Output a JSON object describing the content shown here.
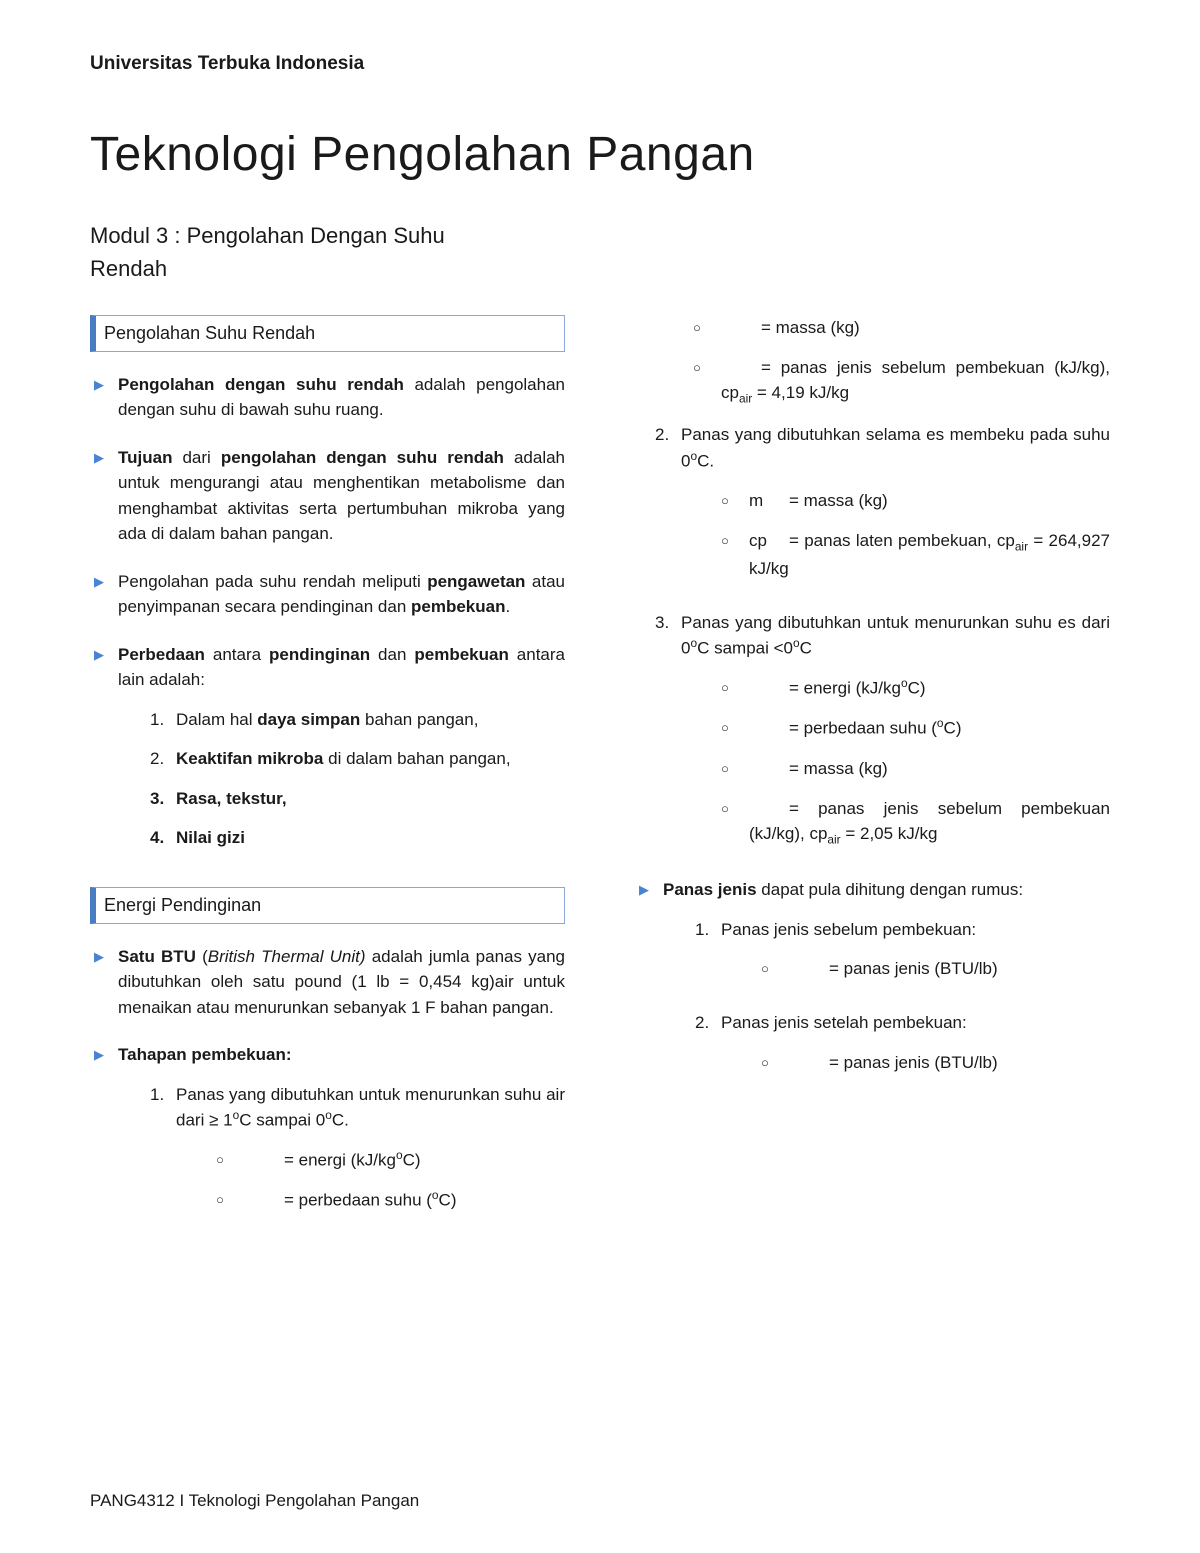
{
  "header": {
    "university": "Universitas Terbuka Indonesia"
  },
  "title": "Teknologi Pengolahan Pangan",
  "subtitle": "Modul 3 : Pengolahan Dengan Suhu Rendah",
  "footer": "PANG4312 I Teknologi Pengolahan Pangan",
  "colors": {
    "arrow": "#4a82d4",
    "section_border": "#8aa9d6",
    "section_left_bar": "#4a7cc4",
    "text": "#1a1a1a",
    "bg": "#ffffff"
  },
  "typography": {
    "body_pt": 17,
    "title_pt": 48,
    "subtitle_pt": 22,
    "header_pt": 19
  },
  "sections": [
    {
      "heading": "Pengolahan Suhu Rendah",
      "bullets": [
        {
          "parts": [
            {
              "t": "Pengolahan dengan suhu rendah",
              "b": true
            },
            {
              "t": " adalah pengolahan dengan suhu di bawah suhu ruang."
            }
          ]
        },
        {
          "parts": [
            {
              "t": "Tujuan",
              "b": true
            },
            {
              "t": " dari "
            },
            {
              "t": "pengolahan dengan suhu rendah",
              "b": true
            },
            {
              "t": " adalah untuk mengurangi atau menghentikan metabolisme dan menghambat aktivitas serta pertumbuhan mikroba yang ada di dalam bahan pangan."
            }
          ]
        },
        {
          "parts": [
            {
              "t": "Pengolahan pada suhu rendah meliputi "
            },
            {
              "t": "pengawetan",
              "b": true
            },
            {
              "t": " atau penyimpanan secara pendinginan dan "
            },
            {
              "t": "pembekuan",
              "b": true
            },
            {
              "t": "."
            }
          ]
        },
        {
          "parts": [
            {
              "t": "Perbedaan",
              "b": true
            },
            {
              "t": " antara "
            },
            {
              "t": "pendinginan",
              "b": true
            },
            {
              "t": " dan "
            },
            {
              "t": "pembekuan",
              "b": true
            },
            {
              "t": " antara lain adalah:"
            }
          ],
          "numbered": [
            {
              "n": "1.",
              "parts": [
                {
                  "t": "Dalam hal "
                },
                {
                  "t": "daya simpan",
                  "b": true
                },
                {
                  "t": " bahan pangan,"
                }
              ]
            },
            {
              "n": "2.",
              "parts": [
                {
                  "t": "Keaktifan mikroba",
                  "b": true
                },
                {
                  "t": " di dalam bahan pangan,"
                }
              ]
            },
            {
              "n": "3.",
              "parts": [
                {
                  "t": "Rasa, tekstur,",
                  "b": true
                }
              ],
              "num_bold": true
            },
            {
              "n": "4.",
              "parts": [
                {
                  "t": "Nilai gizi",
                  "b": true
                }
              ],
              "num_bold": true
            }
          ]
        }
      ]
    },
    {
      "heading": "Energi Pendinginan",
      "bullets": [
        {
          "parts": [
            {
              "t": "Satu BTU",
              "b": true
            },
            {
              "t": " ("
            },
            {
              "t": "British Thermal Unit)",
              "i": true
            },
            {
              "t": " adalah jumla panas yang dibutuhkan oleh satu pound (1 lb = 0,454 kg)air untuk menaikan atau menurunkan sebanyak 1 F bahan pangan."
            }
          ]
        },
        {
          "parts": [
            {
              "t": "Tahapan pembekuan:",
              "b": true
            }
          ],
          "numbered": [
            {
              "n": "1.",
              "parts": [
                {
                  "t": "Panas yang dibutuhkan untuk menurunkan suhu air dari ≥ 1"
                },
                {
                  "t": "o",
                  "sup": true
                },
                {
                  "t": "C sampai 0"
                },
                {
                  "t": "o",
                  "sup": true
                },
                {
                  "t": "C."
                }
              ],
              "circles": [
                {
                  "left": "",
                  "parts": [
                    {
                      "t": "= energi (kJ/kg"
                    },
                    {
                      "t": "o",
                      "sup": true
                    },
                    {
                      "t": "C)"
                    }
                  ]
                },
                {
                  "left": "",
                  "parts": [
                    {
                      "t": "= perbedaan suhu ("
                    },
                    {
                      "t": "o",
                      "sup": true
                    },
                    {
                      "t": "C)"
                    }
                  ]
                },
                {
                  "left": "",
                  "parts": [
                    {
                      "t": "= massa (kg)"
                    }
                  ]
                },
                {
                  "left": "",
                  "parts": [
                    {
                      "t": "= panas jenis sebelum pembekuan (kJ/kg), cp"
                    },
                    {
                      "t": "air",
                      "sub": true
                    },
                    {
                      "t": " = 4,19 kJ/kg"
                    }
                  ]
                }
              ]
            },
            {
              "n": "2.",
              "parts": [
                {
                  "t": "Panas yang dibutuhkan selama es membeku pada suhu 0"
                },
                {
                  "t": "o",
                  "sup": true
                },
                {
                  "t": "C."
                }
              ],
              "circles": [
                {
                  "left": "m",
                  "parts": [
                    {
                      "t": "= massa (kg)"
                    }
                  ]
                },
                {
                  "left": "cp",
                  "parts": [
                    {
                      "t": "= panas laten pembekuan, cp"
                    },
                    {
                      "t": "air",
                      "sub": true
                    },
                    {
                      "t": " = 264,927 kJ/kg"
                    }
                  ]
                }
              ]
            },
            {
              "n": "3.",
              "parts": [
                {
                  "t": "Panas yang dibutuhkan untuk menurunkan suhu es dari 0"
                },
                {
                  "t": "o",
                  "sup": true
                },
                {
                  "t": "C sampai <0"
                },
                {
                  "t": "o",
                  "sup": true
                },
                {
                  "t": "C"
                }
              ],
              "circles": [
                {
                  "left": "",
                  "parts": [
                    {
                      "t": "= energi (kJ/kg"
                    },
                    {
                      "t": "o",
                      "sup": true
                    },
                    {
                      "t": "C)"
                    }
                  ]
                },
                {
                  "left": "",
                  "parts": [
                    {
                      "t": "= perbedaan suhu ("
                    },
                    {
                      "t": "o",
                      "sup": true
                    },
                    {
                      "t": "C)"
                    }
                  ]
                },
                {
                  "left": "",
                  "parts": [
                    {
                      "t": "= massa (kg)"
                    }
                  ]
                },
                {
                  "left": "",
                  "parts": [
                    {
                      "t": "= panas jenis sebelum pembekuan (kJ/kg), cp"
                    },
                    {
                      "t": "air",
                      "sub": true
                    },
                    {
                      "t": " = 2,05 kJ/kg"
                    }
                  ]
                }
              ]
            }
          ]
        },
        {
          "parts": [
            {
              "t": "Panas jenis",
              "b": true
            },
            {
              "t": " dapat pula dihitung dengan rumus:"
            }
          ],
          "numbered": [
            {
              "n": "1.",
              "parts": [
                {
                  "t": "Panas jenis sebelum pembekuan:"
                }
              ],
              "circles": [
                {
                  "left": "",
                  "parts": [
                    {
                      "t": "= panas jenis (BTU/lb)"
                    }
                  ]
                }
              ]
            },
            {
              "n": "2.",
              "parts": [
                {
                  "t": "Panas jenis setelah pembekuan:"
                }
              ],
              "circles": [
                {
                  "left": "",
                  "parts": [
                    {
                      "t": "= panas jenis (BTU/lb)"
                    }
                  ]
                }
              ]
            }
          ]
        }
      ]
    }
  ],
  "column_split": {
    "section": 1,
    "bullet": 1,
    "numbered": 0,
    "circle_after": 1
  }
}
